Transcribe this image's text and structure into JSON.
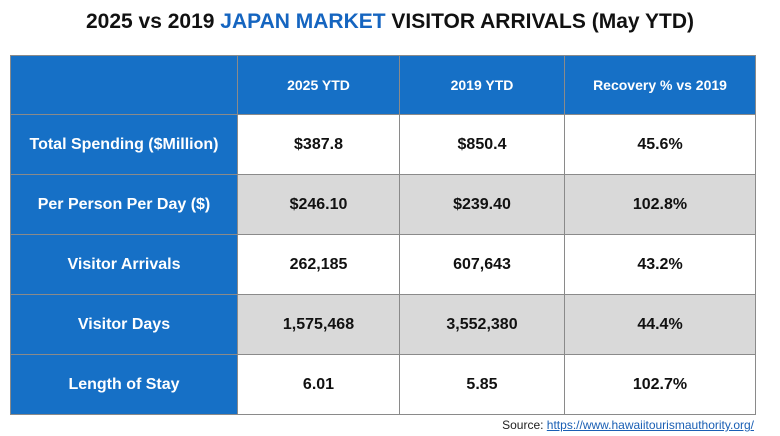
{
  "title": {
    "prefix": "2025 vs 2019",
    "accent": "JAPAN MARKET",
    "suffix": "VISITOR ARRIVALS (May YTD)"
  },
  "colors": {
    "header_blue": "#1670c6",
    "accent_blue": "#1565c0",
    "row_alt_gray": "#d9d9d9"
  },
  "table": {
    "corner": "",
    "columns": [
      "2025 YTD",
      "2019 YTD",
      "Recovery % vs 2019"
    ],
    "rows": [
      {
        "label": "Total Spending ($Million)",
        "values": [
          "$387.8",
          "$850.4",
          "45.6%"
        ]
      },
      {
        "label": "Per Person Per Day ($)",
        "values": [
          "$246.10",
          "$239.40",
          "102.8%"
        ]
      },
      {
        "label": "Visitor Arrivals",
        "values": [
          "262,185",
          "607,643",
          "43.2%"
        ]
      },
      {
        "label": "Visitor Days",
        "values": [
          "1,575,468",
          "3,552,380",
          "44.4%"
        ]
      },
      {
        "label": "Length of Stay",
        "values": [
          "6.01",
          "5.85",
          "102.7%"
        ]
      }
    ]
  },
  "source": {
    "label": "Source:",
    "link_text": "https://www.hawaiitourismauthority.org/"
  }
}
